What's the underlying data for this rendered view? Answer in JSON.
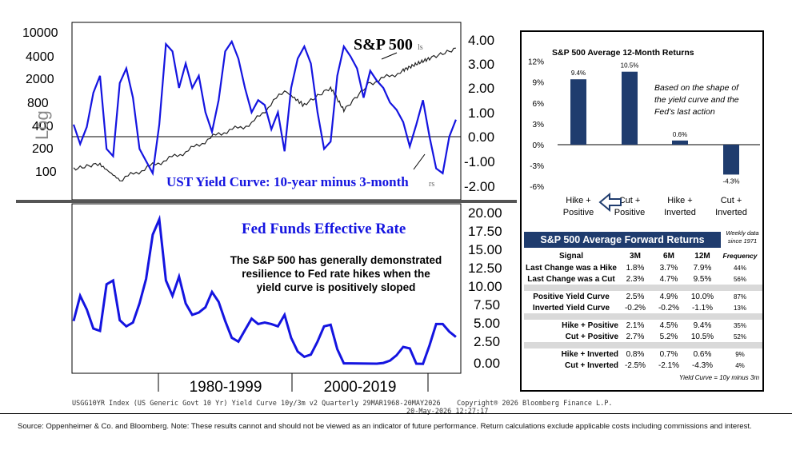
{
  "colors": {
    "blue_line": "#1414e0",
    "spx_line": "#222222",
    "bar_navy": "#1f3c6e",
    "axis": "#000000"
  },
  "left_chart": {
    "top_panel": {
      "left_axis_ticks": [
        "10000",
        "4000",
        "2000",
        "800",
        "400",
        "200",
        "100"
      ],
      "left_axis_label": "Log",
      "right_axis_ticks": [
        "4.00",
        "3.00",
        "2.00",
        "1.00",
        "0.00",
        "-1.00",
        "-2.00"
      ],
      "spx_label": "S&P 500",
      "spx_suffix": "ls",
      "yield_curve_label": "UST Yield Curve: 10-year minus 3-month",
      "yield_curve_suffix": "rs"
    },
    "bottom_panel": {
      "right_axis_ticks": [
        "20.00",
        "17.50",
        "15.00",
        "12.50",
        "10.00",
        "7.50",
        "5.00",
        "2.50",
        "0.00"
      ],
      "title": "Fed Funds Effective Rate",
      "annotation_lines": [
        "The S&P 500 has generally demonstrated",
        "resilience to Fed rate hikes when the",
        "yield curve is positively sloped"
      ]
    },
    "period_labels": [
      "1980-1999",
      "2000-2019"
    ],
    "footer_line1": "USGG10YR Index (US Generic Govt 10 Yr) Yield Curve 10y/3m v2 Quarterly 29MAR1968-20MAY2026",
    "footer_copyright": "Copyright® 2026 Bloomberg Finance L.P.",
    "footer_line2": "20-May-2026 12:27:17"
  },
  "chart_data": [
    {
      "type": "bar",
      "title": "S&P 500 Average 12-Month Returns",
      "categories": [
        "Hike + Positive",
        "Cut + Positive",
        "Hike + Inverted",
        "Cut + Inverted"
      ],
      "values": [
        9.4,
        10.5,
        0.6,
        -4.3
      ],
      "value_labels": [
        "9.4%",
        "10.5%",
        "0.6%",
        "-4.3%"
      ],
      "y_ticks": [
        "12%",
        "9%",
        "6%",
        "3%",
        "0%",
        "-3%",
        "-6%"
      ],
      "ylim": [
        -6,
        12
      ],
      "annotation": "Based on the shape of the yield curve and the Fed's last action"
    },
    {
      "type": "table",
      "title": "S&P 500 Average Forward Returns",
      "note": "Weekly data since 1971",
      "columns": [
        "Signal",
        "3M",
        "6M",
        "12M",
        "Frequency"
      ],
      "groups": [
        [
          [
            "Last Change was a Hike",
            "1.8%",
            "3.7%",
            "7.9%",
            "44%"
          ],
          [
            "Last Change was a Cut",
            "2.3%",
            "4.7%",
            "9.5%",
            "56%"
          ]
        ],
        [
          [
            "Positive Yield Curve",
            "2.5%",
            "4.9%",
            "10.0%",
            "87%"
          ],
          [
            "Inverted Yield Curve",
            "-0.2%",
            "-0.2%",
            "-1.1%",
            "13%"
          ]
        ],
        [
          [
            "Hike + Positive",
            "2.1%",
            "4.5%",
            "9.4%",
            "35%"
          ],
          [
            "Cut + Positive",
            "2.7%",
            "5.2%",
            "10.5%",
            "52%"
          ]
        ],
        [
          [
            "Hike + Inverted",
            "0.8%",
            "0.7%",
            "0.6%",
            "9%"
          ],
          [
            "Cut + Inverted",
            "-2.5%",
            "-2.1%",
            "-4.3%",
            "4%"
          ]
        ]
      ],
      "footnote": "Yield Curve = 10y minus 3m"
    },
    {
      "type": "line",
      "title": "S&P 500",
      "y_scale": "log",
      "x": [
        1968,
        1972,
        1975,
        1980,
        1985,
        1990,
        1995,
        2000,
        2003,
        2007,
        2009,
        2013,
        2018,
        2020,
        2022,
        2026
      ],
      "values": [
        98,
        118,
        70,
        115,
        180,
        330,
        460,
        1400,
        850,
        1500,
        700,
        1800,
        2700,
        3300,
        4000,
        5500
      ]
    },
    {
      "type": "line",
      "title": "UST Yield Curve: 10-year minus 3-month",
      "x": [
        1968,
        1969,
        1970,
        1971,
        1972,
        1973,
        1974,
        1975,
        1976,
        1977,
        1978,
        1979,
        1980,
        1981,
        1982,
        1983,
        1984,
        1985,
        1986,
        1987,
        1988,
        1989,
        1990,
        1991,
        1992,
        1993,
        1994,
        1995,
        1996,
        1997,
        1998,
        1999,
        2000,
        2001,
        2002,
        2003,
        2004,
        2005,
        2006,
        2007,
        2008,
        2009,
        2010,
        2011,
        2012,
        2013,
        2014,
        2015,
        2016,
        2017,
        2018,
        2019,
        2020,
        2021,
        2022,
        2023,
        2024,
        2025,
        2026
      ],
      "values": [
        0.5,
        -0.3,
        0.4,
        1.8,
        2.5,
        -0.5,
        -0.8,
        2.2,
        2.8,
        1.6,
        -0.5,
        -1.0,
        -1.5,
        0.5,
        3.8,
        3.5,
        2.0,
        3.0,
        2.0,
        2.5,
        1.0,
        0.2,
        1.5,
        3.5,
        3.9,
        3.2,
        2.0,
        1.0,
        1.5,
        1.3,
        0.3,
        1.0,
        -0.6,
        2.0,
        3.2,
        3.7,
        3.0,
        1.0,
        -0.5,
        -0.2,
        2.5,
        3.7,
        3.3,
        2.8,
        1.6,
        2.7,
        2.3,
        2.0,
        1.4,
        1.1,
        0.6,
        -0.4,
        0.5,
        1.5,
        0.0,
        -1.3,
        -1.5,
        0.0,
        0.7
      ]
    },
    {
      "type": "line",
      "title": "Fed Funds Effective Rate",
      "x": [
        1968,
        1969,
        1970,
        1971,
        1972,
        1973,
        1974,
        1975,
        1976,
        1977,
        1978,
        1979,
        1980,
        1981,
        1982,
        1983,
        1984,
        1985,
        1986,
        1987,
        1988,
        1989,
        1990,
        1991,
        1992,
        1993,
        1994,
        1995,
        1996,
        1997,
        1998,
        1999,
        2000,
        2001,
        2002,
        2003,
        2004,
        2005,
        2006,
        2007,
        2008,
        2009,
        2010,
        2014,
        2015,
        2016,
        2017,
        2018,
        2019,
        2020,
        2021,
        2022,
        2023,
        2024,
        2025,
        2026
      ],
      "values": [
        5.7,
        9.0,
        7.2,
        4.7,
        4.4,
        10.5,
        11.0,
        5.8,
        5.0,
        5.5,
        8.0,
        11.2,
        17.0,
        19.0,
        11.0,
        9.0,
        11.5,
        8.0,
        6.5,
        6.8,
        7.5,
        9.5,
        8.2,
        5.7,
        3.5,
        3.0,
        4.5,
        6.0,
        5.3,
        5.5,
        5.3,
        5.0,
        6.5,
        3.5,
        1.7,
        1.0,
        1.3,
        3.0,
        5.0,
        5.2,
        2.0,
        0.15,
        0.15,
        0.1,
        0.2,
        0.5,
        1.2,
        2.3,
        2.1,
        0.1,
        0.08,
        2.5,
        5.3,
        5.3,
        4.3,
        3.6
      ]
    }
  ],
  "source_note": "Source: Oppenheimer & Co. and Bloomberg. Note: These results cannot and should not be viewed as an indicator of future performance. Return calculations exclude applicable costs including commissions and interest."
}
